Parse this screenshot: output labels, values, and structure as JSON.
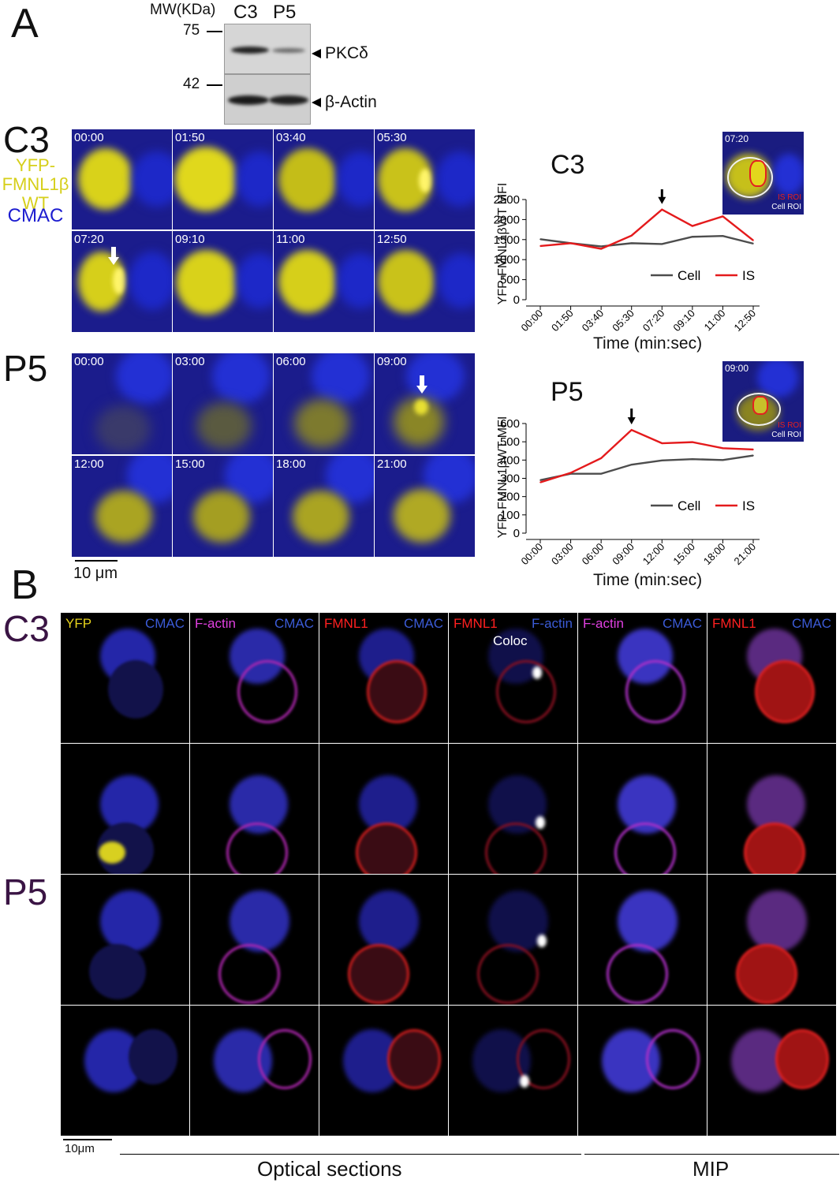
{
  "panel_a": {
    "letter": "A",
    "blot": {
      "mw_header": "MW(KDa)",
      "lanes": [
        "C3",
        "P5"
      ],
      "markers": [
        "75",
        "42"
      ],
      "bands": [
        "PKCδ",
        "β-Actin"
      ]
    },
    "labels": {
      "c3": "C3",
      "p5": "P5",
      "probe_line1": "YFP-",
      "probe_line2": "FMNL1β",
      "probe_line3": "WT",
      "stain": "CMAC"
    },
    "c3_timestamps": [
      "00:00",
      "01:50",
      "03:40",
      "05:30",
      "07:20",
      "09:10",
      "11:00",
      "12:50"
    ],
    "p5_timestamps": [
      "00:00",
      "03:00",
      "06:00",
      "09:00",
      "12:00",
      "15:00",
      "18:00",
      "21:00"
    ],
    "scale_bar": "10 μm",
    "inset_c3": {
      "time": "07:20",
      "is_roi": "IS ROI",
      "cell_roi": "Cell ROI"
    },
    "inset_p5": {
      "time": "09:00",
      "is_roi": "IS ROI",
      "cell_roi": "Cell ROI"
    },
    "colors": {
      "cell": "#4d4d4d",
      "is": "#e41a1c",
      "cmac": "#1b1c8c",
      "yfp": "#d4cf1a"
    }
  },
  "panel_b": {
    "letter": "B",
    "row_labels": [
      "C3",
      "P5"
    ],
    "column_labels": [
      [
        {
          "t": "YFP",
          "c": "#e6d21c"
        },
        {
          "t": "CMAC",
          "c": "#3b5bd6"
        }
      ],
      [
        {
          "t": "F-actin",
          "c": "#e040e0"
        },
        {
          "t": "CMAC",
          "c": "#3b5bd6"
        }
      ],
      [
        {
          "t": "FMNL1",
          "c": "#ff2020"
        },
        {
          "t": "CMAC",
          "c": "#3b5bd6"
        }
      ],
      [
        {
          "t": "FMNL1",
          "c": "#ff2020"
        },
        {
          "t": "F-actin",
          "c": "#3b5bd6"
        }
      ],
      [
        {
          "t": "F-actin",
          "c": "#e040e0"
        },
        {
          "t": "CMAC",
          "c": "#3b5bd6"
        }
      ],
      [
        {
          "t": "FMNL1",
          "c": "#ff2020"
        },
        {
          "t": "CMAC",
          "c": "#3b5bd6"
        }
      ]
    ],
    "coloc_label": "Coloc",
    "scale_bar": "10μm",
    "footer_left": "Optical sections",
    "footer_right": "MIP"
  },
  "chart_data": [
    {
      "type": "line",
      "title": "C3",
      "xlabel": "Time (min:sec)",
      "ylabel": "YFP-FMNL1βWT MFI",
      "categories": [
        "00:00",
        "01:50",
        "03:40",
        "05:30",
        "07:20",
        "09:10",
        "11:00",
        "12:50"
      ],
      "ylim": [
        0,
        2500
      ],
      "yticks": [
        0,
        500,
        1000,
        1500,
        2000,
        2500
      ],
      "legend_position": "bottom-right",
      "series": [
        {
          "name": "Cell",
          "color": "#4d4d4d",
          "values": [
            1510,
            1410,
            1330,
            1410,
            1390,
            1570,
            1590,
            1400
          ]
        },
        {
          "name": "IS",
          "color": "#e41a1c",
          "values": [
            1340,
            1410,
            1270,
            1600,
            2250,
            1840,
            2080,
            1480
          ]
        }
      ]
    },
    {
      "type": "line",
      "title": "P5",
      "xlabel": "Time (min:sec)",
      "ylabel": "YFP-FMNL1βWT MFI",
      "categories": [
        "00:00",
        "03:00",
        "06:00",
        "09:00",
        "12:00",
        "15:00",
        "18:00",
        "21:00"
      ],
      "ylim": [
        0,
        600
      ],
      "yticks": [
        0,
        100,
        200,
        300,
        400,
        500,
        600
      ],
      "legend_position": "bottom-right",
      "series": [
        {
          "name": "Cell",
          "color": "#4d4d4d",
          "values": [
            290,
            325,
            325,
            375,
            398,
            405,
            400,
            425
          ]
        },
        {
          "name": "IS",
          "color": "#e41a1c",
          "values": [
            278,
            330,
            410,
            565,
            492,
            498,
            465,
            458
          ]
        }
      ]
    }
  ]
}
